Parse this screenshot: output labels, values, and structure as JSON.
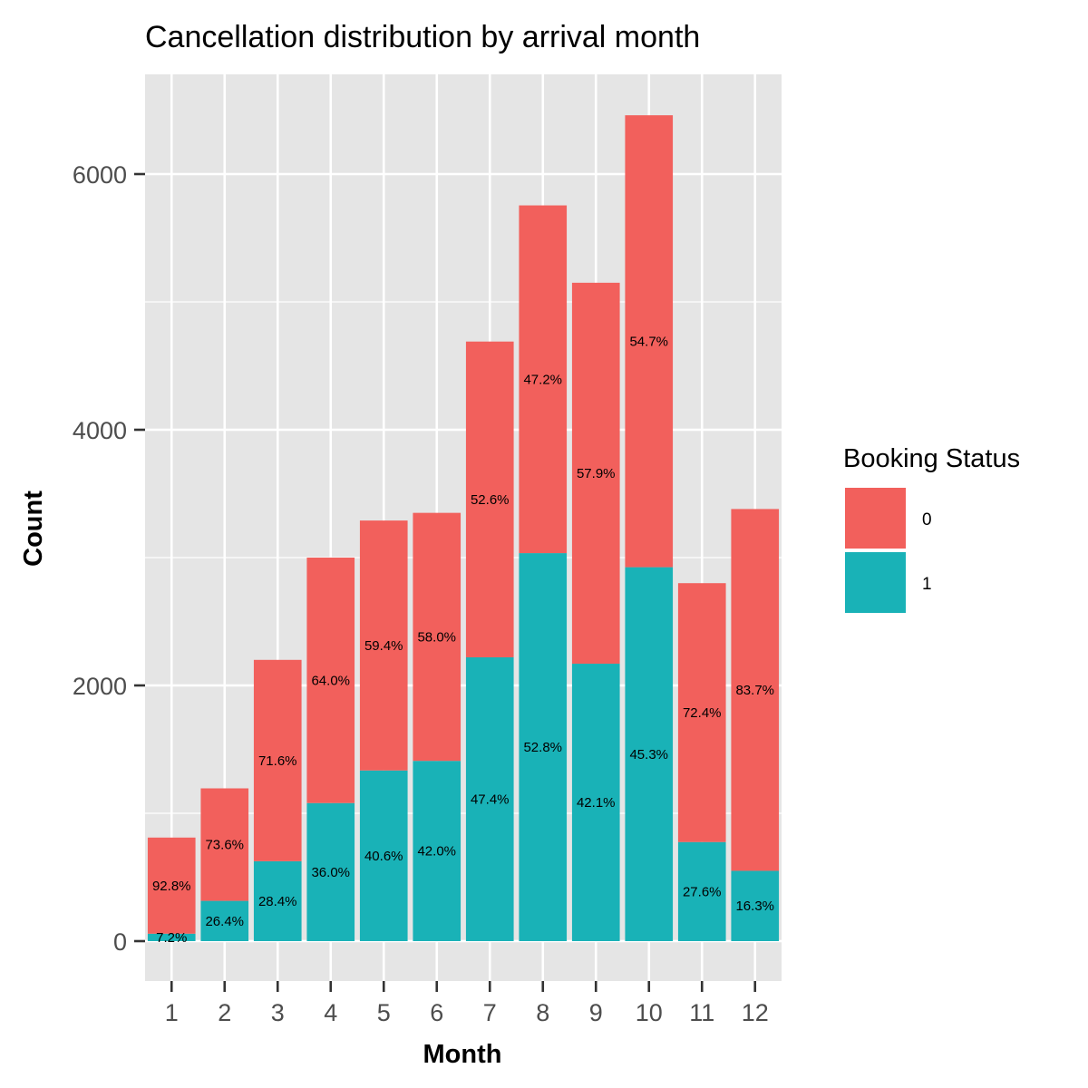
{
  "chart_data": {
    "type": "bar",
    "stacked": true,
    "title": "Cancellation distribution by arrival month",
    "xlabel": "Month",
    "ylabel": "Count",
    "categories": [
      "1",
      "2",
      "3",
      "4",
      "5",
      "6",
      "7",
      "8",
      "9",
      "10",
      "11",
      "12"
    ],
    "ylim": [
      -300,
      6750
    ],
    "yticks": [
      0,
      2000,
      4000,
      6000
    ],
    "series": [
      {
        "name": "1",
        "color": "#19B2B7",
        "values": [
          58,
          315,
          625,
          1080,
          1335,
          1410,
          2220,
          3035,
          2170,
          2925,
          775,
          550
        ],
        "labels": [
          "7.2%",
          "26.4%",
          "28.4%",
          "36.0%",
          "40.6%",
          "42.0%",
          "47.4%",
          "52.8%",
          "42.1%",
          "45.3%",
          "27.6%",
          "16.3%"
        ]
      },
      {
        "name": "0",
        "color": "#F2605C",
        "values": [
          752,
          880,
          1575,
          1920,
          1955,
          1940,
          2470,
          2720,
          2980,
          3535,
          2025,
          2830
        ],
        "labels": [
          "92.8%",
          "73.6%",
          "71.6%",
          "64.0%",
          "59.4%",
          "58.0%",
          "52.6%",
          "47.2%",
          "57.9%",
          "54.7%",
          "72.4%",
          "83.7%"
        ]
      }
    ],
    "legend": {
      "title": "Booking Status",
      "position": "right",
      "entries": [
        {
          "label": "0",
          "color": "#F2605C"
        },
        {
          "label": "1",
          "color": "#19B2B7"
        }
      ]
    },
    "grid": true,
    "panel_background": "#E5E5E5",
    "grid_color": "#FFFFFF"
  }
}
